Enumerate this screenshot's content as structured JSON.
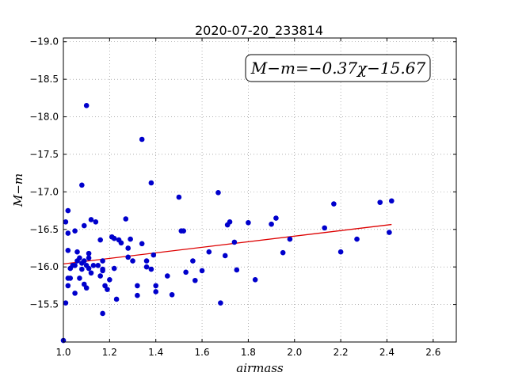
{
  "chart_data": {
    "type": "scatter",
    "title": "2020-07-20_233814",
    "xlabel": "airmass",
    "ylabel": "M−m",
    "xlim": [
      1.0,
      2.7
    ],
    "ylim": [
      -19.05,
      -15.0
    ],
    "y_inverted": true,
    "grid": true,
    "x_ticks": [
      "1.0",
      "1.2",
      "1.4",
      "1.6",
      "1.8",
      "2.0",
      "2.2",
      "2.4",
      "2.6"
    ],
    "y_ticks": [
      "−15.5",
      "−16.0",
      "−16.5",
      "−17.0",
      "−17.5",
      "−18.0",
      "−18.5",
      "−19.0"
    ],
    "annotation": "M−m=−0.37χ−15.67",
    "colors": {
      "points": "#0000cc",
      "fit_line": "#dd0000"
    },
    "fit": {
      "slope": -0.37,
      "intercept": -15.67,
      "x_range": [
        1.0,
        2.42
      ]
    },
    "points": [
      [
        1.0,
        -15.02
      ],
      [
        1.01,
        -16.6
      ],
      [
        1.01,
        -15.52
      ],
      [
        1.02,
        -16.75
      ],
      [
        1.02,
        -15.75
      ],
      [
        1.02,
        -15.85
      ],
      [
        1.02,
        -16.22
      ],
      [
        1.02,
        -16.45
      ],
      [
        1.03,
        -15.98
      ],
      [
        1.03,
        -15.85
      ],
      [
        1.04,
        -16.02
      ],
      [
        1.05,
        -16.48
      ],
      [
        1.05,
        -15.65
      ],
      [
        1.05,
        -16.02
      ],
      [
        1.06,
        -16.2
      ],
      [
        1.06,
        -16.08
      ],
      [
        1.07,
        -15.85
      ],
      [
        1.07,
        -16.12
      ],
      [
        1.08,
        -15.97
      ],
      [
        1.08,
        -16.05
      ],
      [
        1.08,
        -17.09
      ],
      [
        1.09,
        -15.77
      ],
      [
        1.09,
        -16.08
      ],
      [
        1.09,
        -16.55
      ],
      [
        1.1,
        -16.02
      ],
      [
        1.1,
        -15.72
      ],
      [
        1.1,
        -18.15
      ],
      [
        1.11,
        -16.18
      ],
      [
        1.11,
        -15.98
      ],
      [
        1.11,
        -16.12
      ],
      [
        1.12,
        -15.92
      ],
      [
        1.12,
        -16.63
      ],
      [
        1.13,
        -16.02
      ],
      [
        1.14,
        -16.6
      ],
      [
        1.15,
        -16.02
      ],
      [
        1.16,
        -16.36
      ],
      [
        1.16,
        -15.88
      ],
      [
        1.17,
        -15.97
      ],
      [
        1.17,
        -15.38
      ],
      [
        1.17,
        -15.95
      ],
      [
        1.17,
        -16.08
      ],
      [
        1.18,
        -15.75
      ],
      [
        1.19,
        -15.7
      ],
      [
        1.2,
        -15.83
      ],
      [
        1.21,
        -16.4
      ],
      [
        1.22,
        -15.98
      ],
      [
        1.22,
        -16.38
      ],
      [
        1.23,
        -15.57
      ],
      [
        1.24,
        -16.36
      ],
      [
        1.25,
        -16.32
      ],
      [
        1.27,
        -16.64
      ],
      [
        1.28,
        -16.13
      ],
      [
        1.28,
        -16.25
      ],
      [
        1.29,
        -16.37
      ],
      [
        1.3,
        -16.08
      ],
      [
        1.32,
        -15.75
      ],
      [
        1.32,
        -15.62
      ],
      [
        1.34,
        -16.31
      ],
      [
        1.34,
        -17.7
      ],
      [
        1.36,
        -16.0
      ],
      [
        1.36,
        -16.08
      ],
      [
        1.38,
        -15.97
      ],
      [
        1.38,
        -17.12
      ],
      [
        1.39,
        -16.16
      ],
      [
        1.4,
        -15.67
      ],
      [
        1.4,
        -15.75
      ],
      [
        1.45,
        -15.88
      ],
      [
        1.47,
        -15.63
      ],
      [
        1.5,
        -16.93
      ],
      [
        1.51,
        -16.48
      ],
      [
        1.52,
        -16.48
      ],
      [
        1.53,
        -15.93
      ],
      [
        1.56,
        -16.08
      ],
      [
        1.57,
        -15.82
      ],
      [
        1.6,
        -15.95
      ],
      [
        1.63,
        -16.2
      ],
      [
        1.67,
        -16.99
      ],
      [
        1.68,
        -15.52
      ],
      [
        1.7,
        -16.15
      ],
      [
        1.71,
        -16.56
      ],
      [
        1.72,
        -16.6
      ],
      [
        1.74,
        -16.33
      ],
      [
        1.75,
        -15.96
      ],
      [
        1.8,
        -16.59
      ],
      [
        1.83,
        -15.83
      ],
      [
        1.9,
        -16.57
      ],
      [
        1.92,
        -16.65
      ],
      [
        1.95,
        -16.19
      ],
      [
        1.98,
        -16.37
      ],
      [
        2.13,
        -16.52
      ],
      [
        2.17,
        -16.84
      ],
      [
        2.2,
        -16.2
      ],
      [
        2.27,
        -16.37
      ],
      [
        2.37,
        -16.86
      ],
      [
        2.41,
        -16.46
      ],
      [
        2.42,
        -16.88
      ]
    ]
  }
}
